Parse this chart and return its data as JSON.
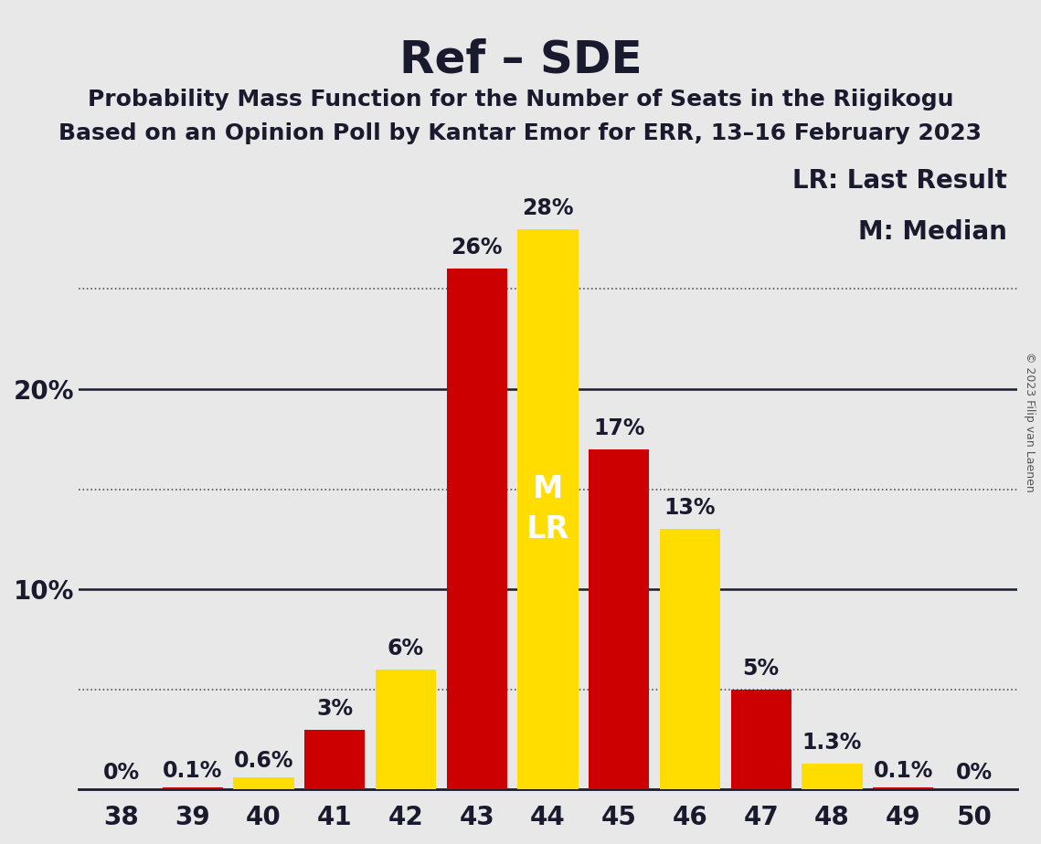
{
  "title": "Ref – SDE",
  "subtitle1": "Probability Mass Function for the Number of Seats in the Riigikogu",
  "subtitle2": "Based on an Opinion Poll by Kantar Emor for ERR, 13–16 February 2023",
  "copyright": "© 2023 Filip van Laenen",
  "legend_lr": "LR: Last Result",
  "legend_m": "M: Median",
  "seats": [
    38,
    39,
    40,
    41,
    42,
    43,
    44,
    45,
    46,
    47,
    48,
    49,
    50
  ],
  "values": [
    0.0,
    0.1,
    0.6,
    3.0,
    6.0,
    26.0,
    28.0,
    17.0,
    13.0,
    5.0,
    1.3,
    0.1,
    0.0
  ],
  "colors": [
    "#cc0000",
    "#cc0000",
    "#ffdd00",
    "#cc0000",
    "#ffdd00",
    "#cc0000",
    "#ffdd00",
    "#cc0000",
    "#ffdd00",
    "#cc0000",
    "#ffdd00",
    "#cc0000",
    "#cc0000"
  ],
  "labels": [
    "0%",
    "0.1%",
    "0.6%",
    "3%",
    "6%",
    "26%",
    "28%",
    "17%",
    "13%",
    "5%",
    "1.3%",
    "0.1%",
    "0%"
  ],
  "median_seat": 44,
  "lr_seat": 44,
  "median_label_in_bar": true,
  "background_color": "#e8e8e8",
  "bar_width": 0.85,
  "ylim": [
    0,
    32
  ],
  "yticks": [
    0,
    5,
    10,
    15,
    20,
    25,
    30
  ],
  "grid_lines": [
    5,
    15,
    25
  ],
  "solid_lines": [
    10,
    20
  ],
  "title_fontsize": 36,
  "subtitle_fontsize": 18,
  "label_fontsize": 17,
  "tick_fontsize": 20,
  "legend_fontsize": 20,
  "annotation_fontsize": 22
}
